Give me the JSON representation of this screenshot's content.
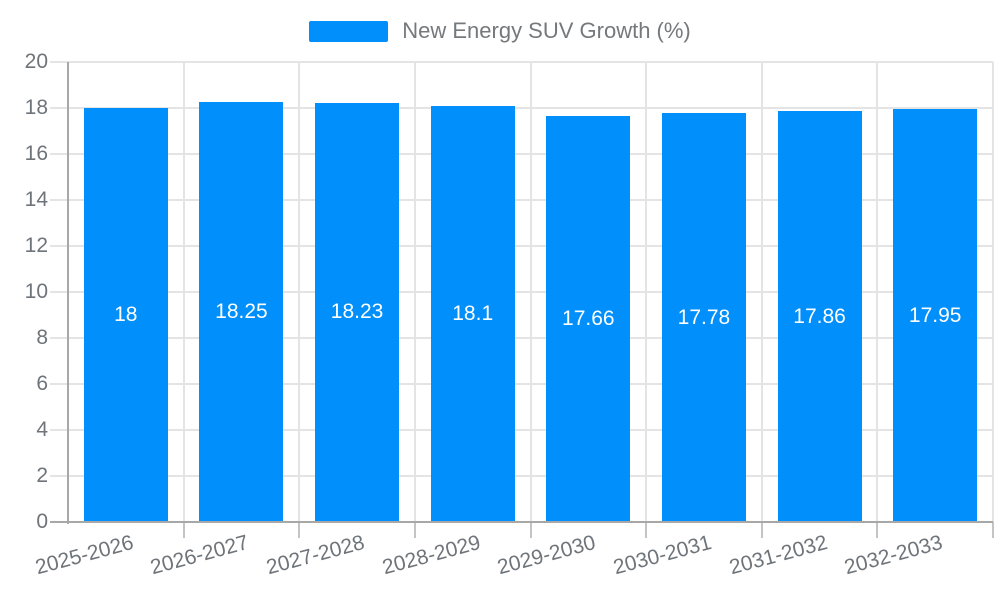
{
  "legend": {
    "label": "New Energy SUV Growth (%)"
  },
  "chart_data": {
    "type": "bar",
    "title": "New Energy SUV Growth (%)",
    "categories": [
      "2025-2026",
      "2026-2027",
      "2027-2028",
      "2028-2029",
      "2029-2030",
      "2030-2031",
      "2031-2032",
      "2032-2033"
    ],
    "values": [
      18,
      18.25,
      18.23,
      18.1,
      17.66,
      17.78,
      17.86,
      17.95
    ],
    "value_labels": [
      "18",
      "18.25",
      "18.23",
      "18.1",
      "17.66",
      "17.78",
      "17.86",
      "17.95"
    ],
    "xlabel": "",
    "ylabel": "",
    "ylim": [
      0,
      20
    ],
    "yticks": [
      0,
      2,
      4,
      6,
      8,
      10,
      12,
      14,
      16,
      18,
      20
    ],
    "grid": true,
    "legend_position": "top",
    "colors": {
      "bar": "#008FFB",
      "value_label": "#FFFFFF",
      "axis_label": "#6E7479",
      "legend_text": "#75797C",
      "grid_line": "#E4E4E4",
      "axis_line": "#A8A8A8",
      "tick": "#C4C4C4"
    }
  }
}
